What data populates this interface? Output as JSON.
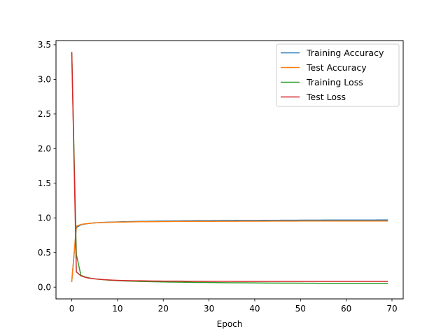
{
  "chart_data": {
    "type": "line",
    "title": "",
    "xlabel": "Epoch",
    "ylabel": "",
    "xlim": [
      -3.45,
      72.45
    ],
    "ylim": [
      -0.17,
      3.56
    ],
    "xticks": [
      0,
      10,
      20,
      30,
      40,
      50,
      60,
      70
    ],
    "yticks": [
      0.0,
      0.5,
      1.0,
      1.5,
      2.0,
      2.5,
      3.0,
      3.5
    ],
    "grid": false,
    "legend_position": "top-right",
    "x": [
      0,
      1,
      2,
      3,
      4,
      5,
      6,
      7,
      8,
      9,
      10,
      11,
      12,
      13,
      14,
      15,
      16,
      17,
      18,
      19,
      20,
      21,
      22,
      23,
      24,
      25,
      26,
      27,
      28,
      29,
      30,
      31,
      32,
      33,
      34,
      35,
      36,
      37,
      38,
      39,
      40,
      41,
      42,
      43,
      44,
      45,
      46,
      47,
      48,
      49,
      50,
      51,
      52,
      53,
      54,
      55,
      56,
      57,
      58,
      59,
      60,
      61,
      62,
      63,
      64,
      65,
      66,
      67,
      68,
      69
    ],
    "series": [
      {
        "name": "Training Accuracy",
        "color": "#1f77b4",
        "values": [
          0.09,
          0.86,
          0.9,
          0.913,
          0.922,
          0.928,
          0.932,
          0.935,
          0.938,
          0.94,
          0.942,
          0.944,
          0.945,
          0.947,
          0.948,
          0.949,
          0.95,
          0.951,
          0.952,
          0.953,
          0.954,
          0.955,
          0.956,
          0.956,
          0.957,
          0.958,
          0.958,
          0.959,
          0.959,
          0.96,
          0.96,
          0.961,
          0.961,
          0.962,
          0.962,
          0.962,
          0.963,
          0.963,
          0.963,
          0.964,
          0.964,
          0.964,
          0.965,
          0.965,
          0.965,
          0.965,
          0.966,
          0.966,
          0.966,
          0.966,
          0.967,
          0.967,
          0.967,
          0.967,
          0.967,
          0.968,
          0.968,
          0.968,
          0.968,
          0.968,
          0.968,
          0.969,
          0.969,
          0.969,
          0.969,
          0.969,
          0.969,
          0.97,
          0.97,
          0.97
        ]
      },
      {
        "name": "Test Accuracy",
        "color": "#ff7f0e",
        "values": [
          0.08,
          0.88,
          0.905,
          0.915,
          0.922,
          0.927,
          0.93,
          0.933,
          0.935,
          0.937,
          0.939,
          0.94,
          0.941,
          0.942,
          0.943,
          0.944,
          0.945,
          0.945,
          0.946,
          0.946,
          0.947,
          0.947,
          0.948,
          0.948,
          0.948,
          0.949,
          0.949,
          0.949,
          0.95,
          0.95,
          0.95,
          0.95,
          0.951,
          0.951,
          0.951,
          0.951,
          0.951,
          0.952,
          0.952,
          0.952,
          0.952,
          0.952,
          0.952,
          0.953,
          0.953,
          0.953,
          0.953,
          0.953,
          0.953,
          0.953,
          0.954,
          0.954,
          0.954,
          0.954,
          0.954,
          0.954,
          0.954,
          0.954,
          0.954,
          0.955,
          0.955,
          0.955,
          0.955,
          0.955,
          0.955,
          0.955,
          0.955,
          0.955,
          0.955,
          0.955
        ]
      },
      {
        "name": "Training Loss",
        "color": "#2ca02c",
        "values": [
          3.37,
          0.47,
          0.17,
          0.145,
          0.13,
          0.12,
          0.113,
          0.107,
          0.102,
          0.098,
          0.094,
          0.091,
          0.088,
          0.086,
          0.084,
          0.082,
          0.08,
          0.079,
          0.077,
          0.076,
          0.075,
          0.074,
          0.073,
          0.072,
          0.071,
          0.07,
          0.069,
          0.068,
          0.068,
          0.067,
          0.066,
          0.066,
          0.065,
          0.064,
          0.064,
          0.063,
          0.063,
          0.062,
          0.062,
          0.061,
          0.061,
          0.06,
          0.06,
          0.059,
          0.059,
          0.059,
          0.058,
          0.058,
          0.057,
          0.057,
          0.057,
          0.056,
          0.056,
          0.056,
          0.055,
          0.055,
          0.055,
          0.054,
          0.054,
          0.054,
          0.053,
          0.053,
          0.053,
          0.053,
          0.052,
          0.052,
          0.052,
          0.052,
          0.051,
          0.051
        ]
      },
      {
        "name": "Test Loss",
        "color": "#d62728",
        "values": [
          3.39,
          0.22,
          0.163,
          0.14,
          0.128,
          0.119,
          0.113,
          0.108,
          0.104,
          0.101,
          0.098,
          0.096,
          0.094,
          0.093,
          0.092,
          0.091,
          0.09,
          0.089,
          0.088,
          0.088,
          0.087,
          0.087,
          0.086,
          0.086,
          0.086,
          0.085,
          0.085,
          0.085,
          0.085,
          0.084,
          0.084,
          0.084,
          0.084,
          0.084,
          0.084,
          0.084,
          0.083,
          0.083,
          0.083,
          0.083,
          0.083,
          0.083,
          0.083,
          0.083,
          0.083,
          0.083,
          0.083,
          0.083,
          0.083,
          0.083,
          0.083,
          0.083,
          0.083,
          0.083,
          0.083,
          0.083,
          0.083,
          0.083,
          0.083,
          0.083,
          0.083,
          0.083,
          0.083,
          0.083,
          0.083,
          0.083,
          0.083,
          0.083,
          0.083,
          0.083
        ]
      }
    ]
  }
}
